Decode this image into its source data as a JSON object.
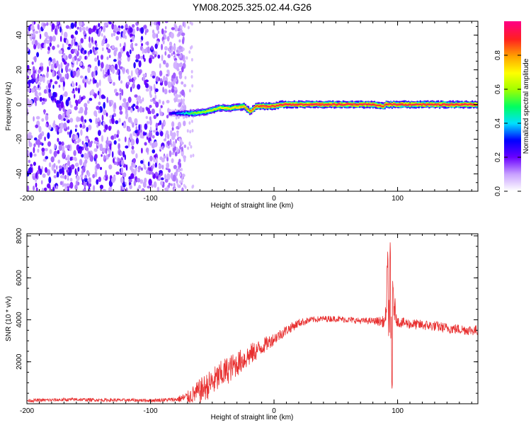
{
  "chart_data": [
    {
      "type": "heatmap",
      "title": "YM08.2025.325.02.44.G26",
      "xlabel": "Height of straight line (km)",
      "ylabel": "Frequency (Hz)",
      "xlim": [
        -200,
        165
      ],
      "ylim": [
        -50,
        48
      ],
      "xticks": [
        -200,
        -100,
        0,
        100
      ],
      "xtick_labels": [
        "-200",
        "-100",
        "0",
        "100"
      ],
      "yticks": [
        -40,
        -20,
        0,
        20,
        40
      ],
      "ytick_labels": [
        "-40",
        "-20",
        "0",
        "20",
        "40"
      ],
      "noise_region_x": [
        -200,
        -80
      ],
      "ridge": {
        "x": [
          -85,
          -75,
          -65,
          -55,
          -45,
          -35,
          -25,
          -20,
          -15,
          -10,
          0,
          5,
          20,
          40,
          60,
          80,
          88,
          90,
          95,
          100,
          120,
          140,
          165
        ],
        "freq": [
          -5,
          -5,
          -5,
          -4,
          -2,
          -2,
          -1,
          -4,
          -1,
          -1,
          -1,
          0,
          0,
          0,
          0,
          0,
          -1,
          0,
          0,
          0,
          0,
          0,
          0
        ],
        "amplitude": [
          0.25,
          0.4,
          0.6,
          0.65,
          0.7,
          0.75,
          0.8,
          0.85,
          0.9,
          0.95,
          0.95,
          0.97,
          0.97,
          0.97,
          0.97,
          0.97,
          0.9,
          0.95,
          0.97,
          0.97,
          0.97,
          0.97,
          0.97
        ]
      },
      "colorbar": {
        "label": "Normalized spectral amplitude",
        "range": [
          0,
          1
        ],
        "ticks": [
          0,
          0.2,
          0.4,
          0.6,
          0.8
        ],
        "tick_labels": [
          "0.0",
          "0.2",
          "0.4",
          "0.6",
          "0.8"
        ],
        "colors": [
          "#ffffff",
          "#c8a0ff",
          "#6a00ff",
          "#0000ff",
          "#00e0ff",
          "#00ff60",
          "#a0ff00",
          "#ffff00",
          "#ffa000",
          "#ff2020",
          "#ff0080"
        ]
      }
    },
    {
      "type": "line",
      "xlabel": "Height of straight line (km)",
      "ylabel": "SNR (10 * v/v)",
      "xlim": [
        -200,
        165
      ],
      "ylim": [
        0,
        8100
      ],
      "xticks": [
        -200,
        -100,
        0,
        100
      ],
      "xtick_labels": [
        "-200",
        "-100",
        "0",
        "100"
      ],
      "yticks": [
        2000,
        4000,
        6000,
        8000
      ],
      "ytick_labels": [
        "2000",
        "4000",
        "6000",
        "8000"
      ],
      "color": "#e83030",
      "series": [
        {
          "name": "SNR",
          "x": [
            -200,
            -180,
            -160,
            -140,
            -120,
            -100,
            -80,
            -70,
            -60,
            -50,
            -40,
            -30,
            -20,
            -10,
            0,
            10,
            20,
            30,
            40,
            50,
            60,
            70,
            80,
            90,
            92,
            94,
            96,
            100,
            110,
            120,
            130,
            140,
            150,
            160,
            165
          ],
          "y": [
            150,
            180,
            200,
            180,
            170,
            160,
            200,
            300,
            600,
            1000,
            1500,
            1900,
            2300,
            2700,
            3100,
            3500,
            3850,
            4000,
            4050,
            4050,
            4000,
            3950,
            3950,
            3900,
            6000,
            2500,
            5000,
            3900,
            3800,
            3750,
            3700,
            3600,
            3550,
            3500,
            3500
          ],
          "noise": [
            80,
            80,
            80,
            80,
            80,
            80,
            100,
            300,
            600,
            700,
            700,
            600,
            550,
            400,
            300,
            250,
            200,
            150,
            150,
            150,
            150,
            150,
            150,
            300,
            1500,
            1500,
            900,
            250,
            250,
            250,
            250,
            250,
            250,
            250,
            250
          ]
        }
      ]
    }
  ]
}
